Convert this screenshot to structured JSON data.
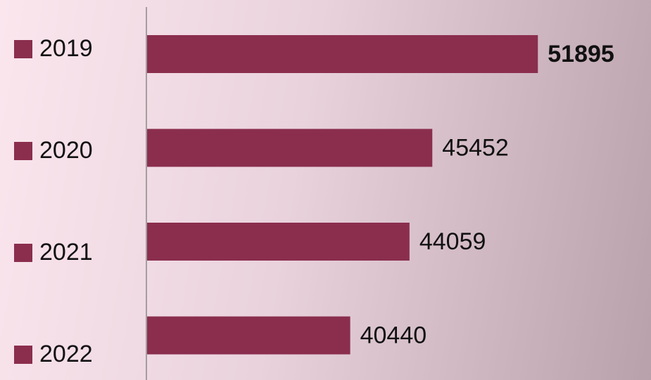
{
  "chart_data": {
    "type": "barh",
    "categories": [
      "2019",
      "2020",
      "2021",
      "2022"
    ],
    "values": [
      51895,
      45452,
      44059,
      40440
    ],
    "color": "#8b2e4e",
    "xlim": [
      28000,
      53000
    ]
  }
}
